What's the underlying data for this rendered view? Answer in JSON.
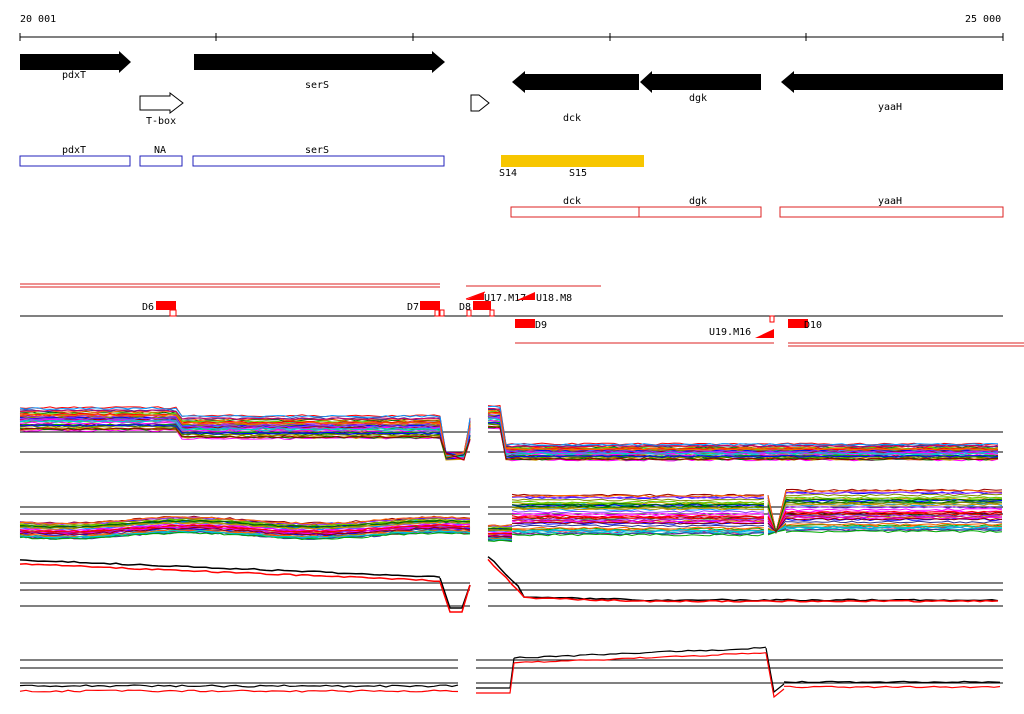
{
  "ruler": {
    "start_label": "20 001",
    "end_label": "25 000"
  },
  "genes": [
    {
      "name": "pdxT"
    },
    {
      "name": "serS"
    },
    {
      "name": "dck"
    },
    {
      "name": "dgk"
    },
    {
      "name": "yaaH"
    },
    {
      "name": "T-box"
    }
  ],
  "upstream_features": [
    {
      "name": "pdxT"
    },
    {
      "name": "NA"
    },
    {
      "name": "serS"
    }
  ],
  "downstream_features": [
    {
      "name": "dck"
    },
    {
      "name": "dgk"
    },
    {
      "name": "yaaH"
    }
  ],
  "segments": [
    "S14",
    "S15"
  ],
  "transcript_marks": [
    "D6",
    "D7",
    "D8",
    "U17.M17",
    "U18.M8",
    "D9",
    "U19.M16",
    "D10"
  ],
  "colors": {
    "arrow": "#000000",
    "forward_box": "#2222bb",
    "reverse_box": "#dd2222",
    "segment": "#f7c600",
    "mark": "#ff0000"
  }
}
